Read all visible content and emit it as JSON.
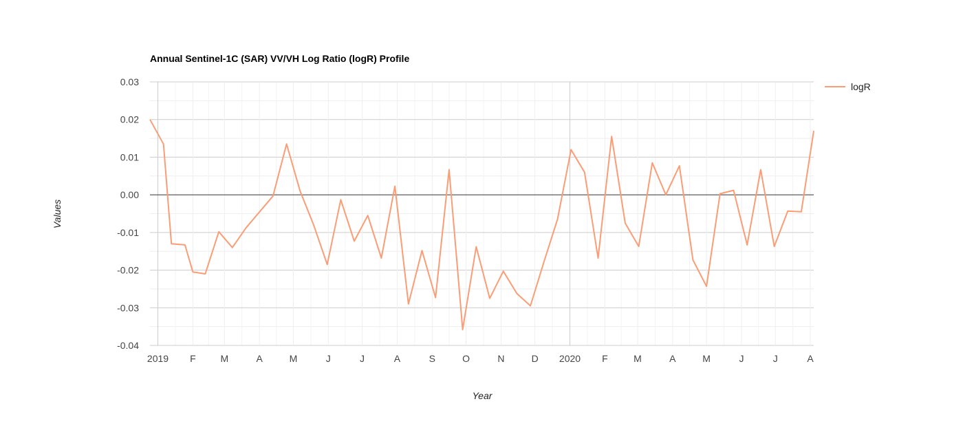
{
  "chart_data": {
    "type": "line",
    "title": "Annual Sentinel-1C (SAR) VV/VH Log Ratio (logR) Profile",
    "xlabel": "Year",
    "ylabel": "Values",
    "ylim": [
      -0.04,
      0.03
    ],
    "y_ticks": [
      "0.03",
      "0.02",
      "0.01",
      "0.00",
      "-0.01",
      "-0.02",
      "-0.03",
      "-0.04"
    ],
    "y_tick_values": [
      0.03,
      0.02,
      0.01,
      0.0,
      -0.01,
      -0.02,
      -0.03,
      -0.04
    ],
    "xlim": [
      "2018-12-25",
      "2020-08-04"
    ],
    "x_ticks": [
      {
        "label": "2019",
        "date": "2019-01-01"
      },
      {
        "label": "F",
        "date": "2019-02-01"
      },
      {
        "label": "M",
        "date": "2019-03-01"
      },
      {
        "label": "A",
        "date": "2019-04-01"
      },
      {
        "label": "M",
        "date": "2019-05-01"
      },
      {
        "label": "J",
        "date": "2019-06-01"
      },
      {
        "label": "J",
        "date": "2019-07-01"
      },
      {
        "label": "A",
        "date": "2019-08-01"
      },
      {
        "label": "S",
        "date": "2019-09-01"
      },
      {
        "label": "O",
        "date": "2019-10-01"
      },
      {
        "label": "N",
        "date": "2019-11-01"
      },
      {
        "label": "D",
        "date": "2019-12-01"
      },
      {
        "label": "2020",
        "date": "2020-01-01"
      },
      {
        "label": "F",
        "date": "2020-02-01"
      },
      {
        "label": "M",
        "date": "2020-03-01"
      },
      {
        "label": "A",
        "date": "2020-04-01"
      },
      {
        "label": "M",
        "date": "2020-05-01"
      },
      {
        "label": "J",
        "date": "2020-06-01"
      },
      {
        "label": "J",
        "date": "2020-07-01"
      },
      {
        "label": "A",
        "date": "2020-08-01"
      }
    ],
    "grid": true,
    "legend_position": "right",
    "series": [
      {
        "name": "logR",
        "color": "#fc9c74",
        "points": [
          {
            "x": "2018-12-25",
            "y": 0.02
          },
          {
            "x": "2019-01-06",
            "y": 0.0135
          },
          {
            "x": "2019-01-13",
            "y": -0.013
          },
          {
            "x": "2019-01-25",
            "y": -0.0133
          },
          {
            "x": "2019-02-01",
            "y": -0.0205
          },
          {
            "x": "2019-02-12",
            "y": -0.021
          },
          {
            "x": "2019-02-24",
            "y": -0.0098
          },
          {
            "x": "2019-03-08",
            "y": -0.014
          },
          {
            "x": "2019-03-20",
            "y": -0.0088
          },
          {
            "x": "2019-04-13",
            "y": -0.0003
          },
          {
            "x": "2019-04-25",
            "y": 0.0135
          },
          {
            "x": "2019-05-07",
            "y": 0.001
          },
          {
            "x": "2019-05-19",
            "y": -0.008
          },
          {
            "x": "2019-05-31",
            "y": -0.0185
          },
          {
            "x": "2019-06-12",
            "y": -0.0013
          },
          {
            "x": "2019-06-24",
            "y": -0.0123
          },
          {
            "x": "2019-07-06",
            "y": -0.0055
          },
          {
            "x": "2019-07-18",
            "y": -0.0168
          },
          {
            "x": "2019-07-30",
            "y": 0.0023
          },
          {
            "x": "2019-08-11",
            "y": -0.029
          },
          {
            "x": "2019-08-23",
            "y": -0.0148
          },
          {
            "x": "2019-09-04",
            "y": -0.0273
          },
          {
            "x": "2019-09-16",
            "y": 0.0067
          },
          {
            "x": "2019-09-28",
            "y": -0.0358
          },
          {
            "x": "2019-10-10",
            "y": -0.0138
          },
          {
            "x": "2019-10-22",
            "y": -0.0275
          },
          {
            "x": "2019-11-03",
            "y": -0.0203
          },
          {
            "x": "2019-11-15",
            "y": -0.0262
          },
          {
            "x": "2019-11-27",
            "y": -0.0295
          },
          {
            "x": "2019-12-09",
            "y": -0.0178
          },
          {
            "x": "2019-12-21",
            "y": -0.0065
          },
          {
            "x": "2020-01-02",
            "y": 0.012
          },
          {
            "x": "2020-01-14",
            "y": 0.006
          },
          {
            "x": "2020-01-26",
            "y": -0.0168
          },
          {
            "x": "2020-02-07",
            "y": 0.0155
          },
          {
            "x": "2020-02-19",
            "y": -0.0075
          },
          {
            "x": "2020-03-02",
            "y": -0.0137
          },
          {
            "x": "2020-03-14",
            "y": 0.0085
          },
          {
            "x": "2020-03-26",
            "y": 0.0
          },
          {
            "x": "2020-04-07",
            "y": 0.0077
          },
          {
            "x": "2020-04-19",
            "y": -0.0173
          },
          {
            "x": "2020-05-01",
            "y": -0.0243
          },
          {
            "x": "2020-05-13",
            "y": 0.0003
          },
          {
            "x": "2020-05-25",
            "y": 0.0012
          },
          {
            "x": "2020-06-06",
            "y": -0.0133
          },
          {
            "x": "2020-06-18",
            "y": 0.0067
          },
          {
            "x": "2020-06-30",
            "y": -0.0137
          },
          {
            "x": "2020-07-12",
            "y": -0.0043
          },
          {
            "x": "2020-07-24",
            "y": -0.0045
          },
          {
            "x": "2020-08-04",
            "y": 0.017
          }
        ]
      }
    ]
  }
}
